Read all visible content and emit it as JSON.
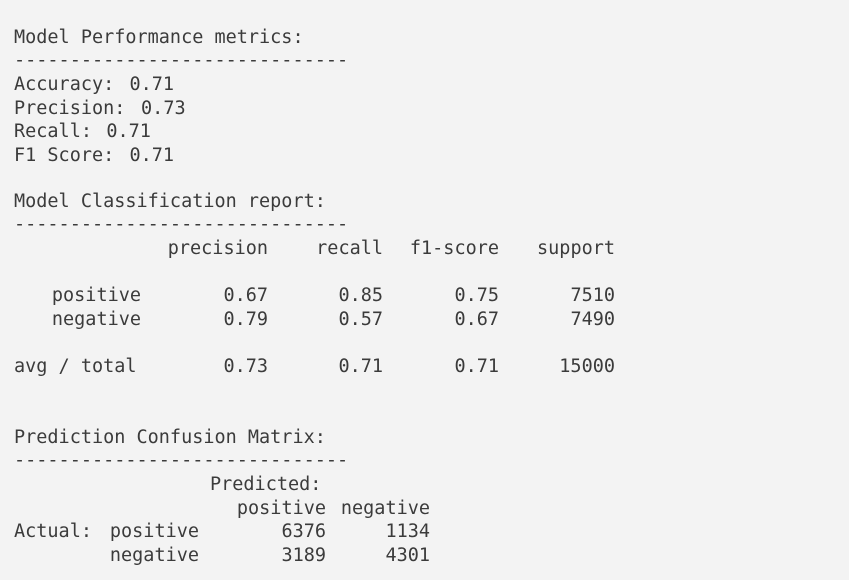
{
  "metrics": {
    "title": "Model Performance metrics:",
    "separator": "------------------------------",
    "items": [
      {
        "label": "Accuracy:",
        "value": 0.71
      },
      {
        "label": "Precision:",
        "value": 0.73
      },
      {
        "label": "Recall:",
        "value": 0.71
      },
      {
        "label": "F1 Score:",
        "value": 0.71
      }
    ]
  },
  "report": {
    "title": "Model Classification report:",
    "separator": "------------------------------",
    "headers": [
      "precision",
      "recall",
      "f1-score",
      "support"
    ],
    "rows": [
      {
        "label": "positive",
        "values": [
          0.67,
          0.85,
          0.75,
          7510
        ]
      },
      {
        "label": "negative",
        "values": [
          0.79,
          0.57,
          0.67,
          7490
        ]
      }
    ],
    "total": {
      "label": "avg / total",
      "values": [
        0.73,
        0.71,
        0.71,
        15000
      ]
    }
  },
  "confusion": {
    "title": "Prediction Confusion Matrix:",
    "separator": "------------------------------",
    "predicted": "Predicted:",
    "actual": "Actual:",
    "columns": [
      "positive",
      "negative"
    ],
    "rows": [
      {
        "label": "positive",
        "values": [
          6376,
          1134
        ]
      },
      {
        "label": "negative",
        "values": [
          3189,
          4301
        ]
      }
    ]
  }
}
